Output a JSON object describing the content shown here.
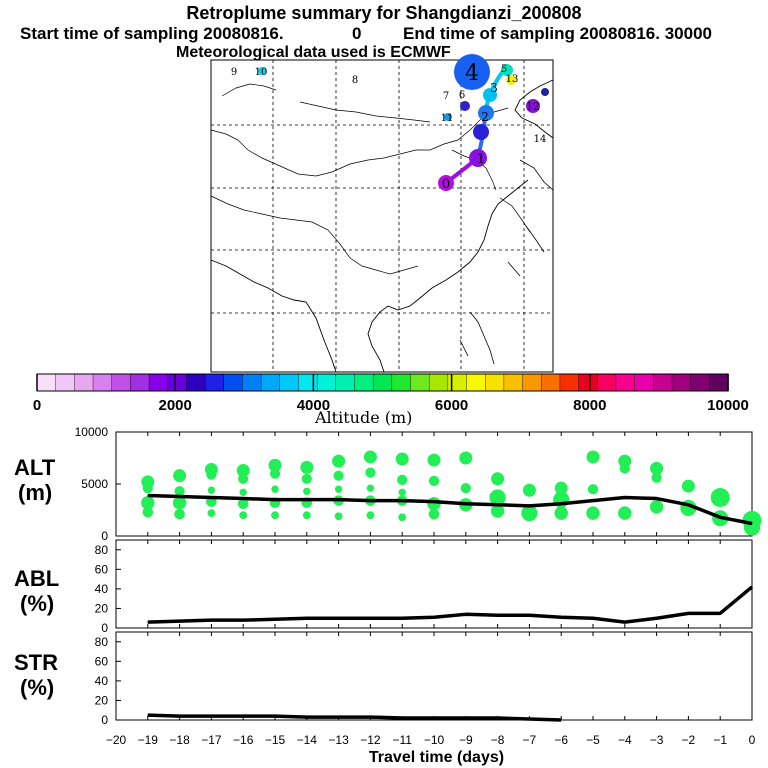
{
  "header": {
    "title": "Retroplume summary for Shangdianzi_200808",
    "start_label": "Start time of sampling 20080816.",
    "start_value": "0",
    "end_label": "End time of sampling 20080816. 30000",
    "met_label": "Meteorological data used is ECMWF"
  },
  "colorbar": {
    "label": "Altitude (m)",
    "ticks": [
      "0",
      "2000",
      "4000",
      "6000",
      "8000",
      "10000"
    ],
    "colors": [
      "#f8e0f8",
      "#f0c8f8",
      "#e8a8f0",
      "#d880f0",
      "#c050e8",
      "#a030e0",
      "#8800e8",
      "#6800d8",
      "#3000c0",
      "#2020e8",
      "#0050f0",
      "#0080f8",
      "#00a8f8",
      "#00c8f8",
      "#00e8f0",
      "#00f0d8",
      "#00f0b0",
      "#00f080",
      "#00e850",
      "#20e830",
      "#70e820",
      "#a8e800",
      "#d8f000",
      "#f8f800",
      "#f8e000",
      "#f8c000",
      "#f89800",
      "#f87000",
      "#f83000",
      "#e80020",
      "#f80060",
      "#f80090",
      "#e800a8",
      "#c80090",
      "#a00080",
      "#800070",
      "#600060"
    ]
  },
  "map": {
    "plume_labels": [
      "0",
      "1",
      "2",
      "3",
      "4",
      "5",
      "6",
      "7",
      "8",
      "9",
      "10",
      "11",
      "12",
      "13",
      "14"
    ]
  },
  "chart_data": [
    {
      "type": "line",
      "title": "ALT",
      "ylabel": "ALT (m)",
      "ylabel_line1": "ALT",
      "ylabel_line2": "(m)",
      "xlabel": "Travel time (days)",
      "ylim": [
        0,
        10000
      ],
      "yticks": [
        "10000",
        "5000",
        "0"
      ],
      "x": [
        -19,
        -18,
        -17,
        -16,
        -15,
        -14,
        -13,
        -12,
        -11,
        -10,
        -9,
        -8,
        -7,
        -6,
        -5,
        -4,
        -3,
        -2,
        -1,
        0
      ],
      "values": [
        3900,
        3800,
        3700,
        3600,
        3500,
        3500,
        3500,
        3400,
        3400,
        3300,
        3100,
        3000,
        2900,
        3100,
        3400,
        3700,
        3600,
        3000,
        1800,
        1200
      ],
      "cluster_points": [
        {
          "x": -19,
          "y": [
            5200,
            4600,
            3200,
            2300
          ]
        },
        {
          "x": -18,
          "y": [
            5800,
            4300,
            3200,
            2100
          ]
        },
        {
          "x": -17,
          "y": [
            6400,
            5900,
            4400,
            3300,
            2200
          ]
        },
        {
          "x": -16,
          "y": [
            6300,
            5500,
            4200,
            3100,
            2000
          ]
        },
        {
          "x": -15,
          "y": [
            6800,
            6000,
            4500,
            3200,
            2000
          ]
        },
        {
          "x": -14,
          "y": [
            6600,
            5500,
            4300,
            3200,
            2000
          ]
        },
        {
          "x": -13,
          "y": [
            7200,
            5800,
            4500,
            3400,
            1900
          ]
        },
        {
          "x": -12,
          "y": [
            7600,
            6100,
            4600,
            3400,
            2000
          ]
        },
        {
          "x": -11,
          "y": [
            7400,
            5400,
            4200,
            3400,
            1800
          ]
        },
        {
          "x": -10,
          "y": [
            7300,
            5300,
            3100,
            2100
          ]
        },
        {
          "x": -9,
          "y": [
            7500,
            4600,
            3000
          ]
        },
        {
          "x": -8,
          "y": [
            5500,
            3700,
            2400
          ]
        },
        {
          "x": -7,
          "y": [
            4400,
            2200
          ]
        },
        {
          "x": -6,
          "y": [
            4600,
            3500,
            2200
          ]
        },
        {
          "x": -5,
          "y": [
            7600,
            4500,
            2200
          ]
        },
        {
          "x": -4,
          "y": [
            7200,
            6500,
            2200
          ]
        },
        {
          "x": -3,
          "y": [
            6500,
            5600,
            2800
          ]
        },
        {
          "x": -2,
          "y": [
            4800,
            2700
          ]
        },
        {
          "x": -1,
          "y": [
            3700,
            1700
          ]
        },
        {
          "x": 0,
          "y": [
            1500,
            800
          ]
        }
      ]
    },
    {
      "type": "line",
      "title": "ABL",
      "ylabel": "ABL (%)",
      "ylabel_line1": "ABL",
      "ylabel_line2": "(%)",
      "ylim": [
        0,
        90
      ],
      "yticks": [
        "80",
        "60",
        "40",
        "20",
        "0"
      ],
      "x": [
        -19,
        -18,
        -17,
        -16,
        -15,
        -14,
        -13,
        -12,
        -11,
        -10,
        -9,
        -8,
        -7,
        -6,
        -5,
        -4,
        -3,
        -2,
        -1,
        0
      ],
      "values": [
        6,
        7,
        8,
        8,
        9,
        10,
        10,
        10,
        10,
        11,
        14,
        13,
        13,
        11,
        10,
        6,
        10,
        15,
        15,
        42
      ]
    },
    {
      "type": "line",
      "title": "STR",
      "ylabel": "STR (%)",
      "ylabel_line1": "STR",
      "ylabel_line2": "(%)",
      "ylim": [
        0,
        90
      ],
      "yticks": [
        "80",
        "60",
        "40",
        "20",
        "0"
      ],
      "x": [
        -19,
        -18,
        -17,
        -16,
        -15,
        -14,
        -13,
        -12,
        -11,
        -10,
        -9,
        -8,
        -7,
        -6
      ],
      "values": [
        5,
        4,
        4,
        4,
        4,
        3,
        3,
        3,
        2,
        2,
        2,
        2,
        1,
        0
      ]
    }
  ],
  "xaxis": {
    "ticks": [
      "−20",
      "−19",
      "−18",
      "−17",
      "−16",
      "−15",
      "−14",
      "−13",
      "−12",
      "−11",
      "−10",
      "−9",
      "−8",
      "−7",
      "−6",
      "−5",
      "−4",
      "−3",
      "−2",
      "−1",
      "0"
    ],
    "label": "Travel time (days)"
  }
}
